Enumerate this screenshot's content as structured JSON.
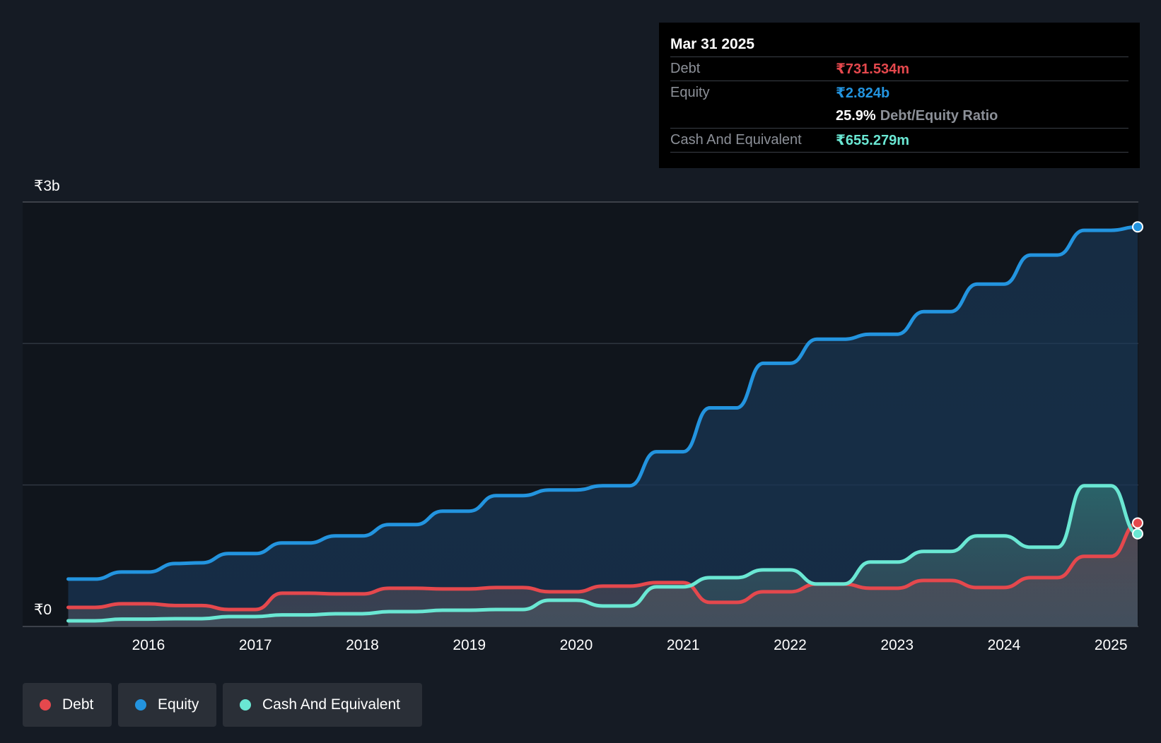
{
  "tooltip": {
    "date": "Mar 31 2025",
    "debt_label": "Debt",
    "debt_value": "₹731.534m",
    "equity_label": "Equity",
    "equity_value": "₹2.824b",
    "ratio_value": "25.9%",
    "ratio_label": "Debt/Equity Ratio",
    "cash_label": "Cash And Equivalent",
    "cash_value": "₹655.279m"
  },
  "legend": {
    "debt": "Debt",
    "equity": "Equity",
    "cash": "Cash And Equivalent"
  },
  "colors": {
    "debt": "#e5484d",
    "equity": "#2394df",
    "cash": "#6ae7d3",
    "background": "#151b24"
  },
  "chart_data": {
    "type": "area",
    "title": "",
    "xlabel": "",
    "ylabel": "",
    "x_ticks": [
      "2016",
      "2017",
      "2018",
      "2019",
      "2020",
      "2021",
      "2022",
      "2023",
      "2024",
      "2025"
    ],
    "y_tick_labels": [
      "₹0",
      "₹3b"
    ],
    "ylim": [
      0,
      3000000000
    ],
    "xlim": [
      2015.25,
      2025.25
    ],
    "grid": true,
    "legend_position": "bottom-left",
    "series": [
      {
        "name": "Equity",
        "points": [
          [
            2015.25,
            335000000
          ],
          [
            2015.5,
            335000000
          ],
          [
            2015.75,
            385000000
          ],
          [
            2016.0,
            385000000
          ],
          [
            2016.25,
            445000000
          ],
          [
            2016.5,
            450000000
          ],
          [
            2016.75,
            515000000
          ],
          [
            2017.0,
            515000000
          ],
          [
            2017.25,
            590000000
          ],
          [
            2017.5,
            590000000
          ],
          [
            2017.75,
            640000000
          ],
          [
            2018.0,
            640000000
          ],
          [
            2018.25,
            720000000
          ],
          [
            2018.5,
            720000000
          ],
          [
            2018.75,
            815000000
          ],
          [
            2019.0,
            815000000
          ],
          [
            2019.25,
            925000000
          ],
          [
            2019.5,
            925000000
          ],
          [
            2019.75,
            965000000
          ],
          [
            2020.0,
            965000000
          ],
          [
            2020.25,
            995000000
          ],
          [
            2020.5,
            995000000
          ],
          [
            2020.75,
            1235000000
          ],
          [
            2021.0,
            1235000000
          ],
          [
            2021.25,
            1545000000
          ],
          [
            2021.5,
            1545000000
          ],
          [
            2021.75,
            1860000000
          ],
          [
            2022.0,
            1860000000
          ],
          [
            2022.25,
            2030000000
          ],
          [
            2022.5,
            2030000000
          ],
          [
            2022.75,
            2065000000
          ],
          [
            2023.0,
            2065000000
          ],
          [
            2023.25,
            2225000000
          ],
          [
            2023.5,
            2225000000
          ],
          [
            2023.75,
            2420000000
          ],
          [
            2024.0,
            2420000000
          ],
          [
            2024.25,
            2625000000
          ],
          [
            2024.5,
            2625000000
          ],
          [
            2024.75,
            2800000000
          ],
          [
            2025.0,
            2800000000
          ],
          [
            2025.25,
            2824000000
          ]
        ]
      },
      {
        "name": "Debt",
        "points": [
          [
            2015.25,
            135000000
          ],
          [
            2015.5,
            135000000
          ],
          [
            2015.75,
            160000000
          ],
          [
            2016.0,
            160000000
          ],
          [
            2016.25,
            148000000
          ],
          [
            2016.5,
            148000000
          ],
          [
            2016.75,
            120000000
          ],
          [
            2017.0,
            120000000
          ],
          [
            2017.25,
            235000000
          ],
          [
            2017.5,
            235000000
          ],
          [
            2017.75,
            230000000
          ],
          [
            2018.0,
            230000000
          ],
          [
            2018.25,
            270000000
          ],
          [
            2018.5,
            270000000
          ],
          [
            2018.75,
            265000000
          ],
          [
            2019.0,
            265000000
          ],
          [
            2019.25,
            275000000
          ],
          [
            2019.5,
            275000000
          ],
          [
            2019.75,
            245000000
          ],
          [
            2020.0,
            245000000
          ],
          [
            2020.25,
            285000000
          ],
          [
            2020.5,
            285000000
          ],
          [
            2020.75,
            310000000
          ],
          [
            2021.0,
            310000000
          ],
          [
            2021.25,
            170000000
          ],
          [
            2021.5,
            170000000
          ],
          [
            2021.75,
            245000000
          ],
          [
            2022.0,
            245000000
          ],
          [
            2022.25,
            300000000
          ],
          [
            2022.5,
            300000000
          ],
          [
            2022.75,
            270000000
          ],
          [
            2023.0,
            270000000
          ],
          [
            2023.25,
            325000000
          ],
          [
            2023.5,
            325000000
          ],
          [
            2023.75,
            275000000
          ],
          [
            2024.0,
            275000000
          ],
          [
            2024.25,
            345000000
          ],
          [
            2024.5,
            345000000
          ],
          [
            2024.75,
            495000000
          ],
          [
            2025.0,
            495000000
          ],
          [
            2025.25,
            731534000
          ]
        ]
      },
      {
        "name": "Cash And Equivalent",
        "points": [
          [
            2015.25,
            40000000
          ],
          [
            2015.5,
            40000000
          ],
          [
            2015.75,
            52000000
          ],
          [
            2016.0,
            52000000
          ],
          [
            2016.25,
            55000000
          ],
          [
            2016.5,
            55000000
          ],
          [
            2016.75,
            70000000
          ],
          [
            2017.0,
            70000000
          ],
          [
            2017.25,
            82000000
          ],
          [
            2017.5,
            82000000
          ],
          [
            2017.75,
            90000000
          ],
          [
            2018.0,
            90000000
          ],
          [
            2018.25,
            105000000
          ],
          [
            2018.5,
            105000000
          ],
          [
            2018.75,
            115000000
          ],
          [
            2019.0,
            115000000
          ],
          [
            2019.25,
            120000000
          ],
          [
            2019.5,
            120000000
          ],
          [
            2019.75,
            185000000
          ],
          [
            2020.0,
            185000000
          ],
          [
            2020.25,
            145000000
          ],
          [
            2020.5,
            145000000
          ],
          [
            2020.75,
            280000000
          ],
          [
            2021.0,
            280000000
          ],
          [
            2021.25,
            345000000
          ],
          [
            2021.5,
            345000000
          ],
          [
            2021.75,
            400000000
          ],
          [
            2022.0,
            400000000
          ],
          [
            2022.25,
            300000000
          ],
          [
            2022.5,
            300000000
          ],
          [
            2022.75,
            455000000
          ],
          [
            2023.0,
            455000000
          ],
          [
            2023.25,
            530000000
          ],
          [
            2023.5,
            530000000
          ],
          [
            2023.75,
            640000000
          ],
          [
            2024.0,
            640000000
          ],
          [
            2024.25,
            560000000
          ],
          [
            2024.5,
            560000000
          ],
          [
            2024.75,
            995000000
          ],
          [
            2025.0,
            995000000
          ],
          [
            2025.25,
            655279000
          ]
        ]
      }
    ]
  }
}
